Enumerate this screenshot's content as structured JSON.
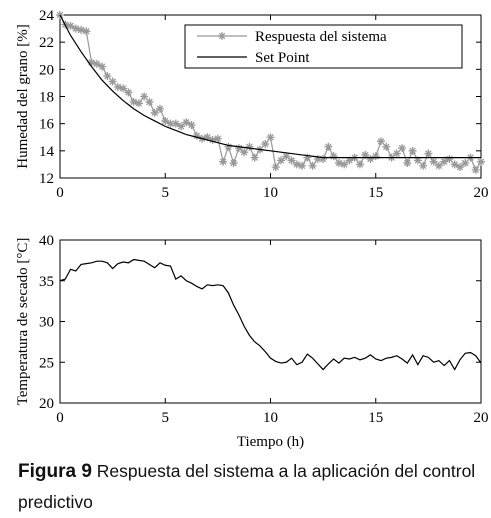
{
  "chart_data": [
    {
      "type": "line",
      "ylabel": "Humedad del grano [%]",
      "xlim": [
        0,
        20
      ],
      "xticks": [
        0,
        5,
        10,
        15,
        20
      ],
      "ylim": [
        12,
        24
      ],
      "yticks": [
        12,
        14,
        16,
        18,
        20,
        22,
        24
      ],
      "legend": "upper right",
      "series": [
        {
          "name": "Respuesta del sistema",
          "color": "#999999",
          "marker": "star",
          "x": [
            0,
            0.25,
            0.5,
            0.75,
            1,
            1.25,
            1.5,
            1.75,
            2,
            2.25,
            2.5,
            2.75,
            3,
            3.25,
            3.5,
            3.75,
            4,
            4.25,
            4.5,
            4.75,
            5,
            5.25,
            5.5,
            5.75,
            6,
            6.25,
            6.5,
            6.75,
            7,
            7.25,
            7.5,
            7.75,
            8,
            8.25,
            8.5,
            8.75,
            9,
            9.25,
            9.5,
            9.75,
            10,
            10.25,
            10.5,
            10.75,
            11,
            11.25,
            11.5,
            11.75,
            12,
            12.25,
            12.5,
            12.75,
            13,
            13.25,
            13.5,
            13.75,
            14,
            14.25,
            14.5,
            14.75,
            15,
            15.25,
            15.5,
            15.75,
            16,
            16.25,
            16.5,
            16.75,
            17,
            17.25,
            17.5,
            17.75,
            18,
            18.25,
            18.5,
            18.75,
            19,
            19.25,
            19.5,
            19.75,
            20
          ],
          "values": [
            24.0,
            23.3,
            23.2,
            23.0,
            22.9,
            22.8,
            20.5,
            20.4,
            20.2,
            19.5,
            19.1,
            18.7,
            18.6,
            18.3,
            17.6,
            17.5,
            18.0,
            17.6,
            16.8,
            17.1,
            16.2,
            16.0,
            16.0,
            15.8,
            16.1,
            15.9,
            15.1,
            14.9,
            15.0,
            14.8,
            14.9,
            13.2,
            14.3,
            13.1,
            14.2,
            13.9,
            14.3,
            13.5,
            14.1,
            14.5,
            15.0,
            12.8,
            13.3,
            13.6,
            13.3,
            13.0,
            12.9,
            13.5,
            12.9,
            13.4,
            13.4,
            14.3,
            13.6,
            13.1,
            13.0,
            13.3,
            13.5,
            13.0,
            13.7,
            13.4,
            13.6,
            14.7,
            14.3,
            13.5,
            13.8,
            14.2,
            13.1,
            14.0,
            13.3,
            12.9,
            13.8,
            13.2,
            12.9,
            13.2,
            13.4,
            13.0,
            12.8,
            13.1,
            13.5,
            12.6,
            13.2
          ]
        },
        {
          "name": "Set Point",
          "color": "#000000",
          "x": [
            0,
            0.5,
            1,
            1.5,
            2,
            2.5,
            3,
            3.5,
            4,
            4.5,
            5,
            5.5,
            6,
            6.5,
            7,
            7.5,
            8,
            8.5,
            9,
            9.5,
            10,
            10.5,
            11,
            11.5,
            12,
            12.5,
            13,
            13.5,
            14,
            14.5,
            15,
            15.5,
            16,
            16.5,
            17,
            17.5,
            18,
            18.5,
            19,
            19.5,
            20
          ],
          "values": [
            24.0,
            22.5,
            21.3,
            20.2,
            19.2,
            18.4,
            17.7,
            17.1,
            16.6,
            16.2,
            15.8,
            15.5,
            15.2,
            15.0,
            14.8,
            14.6,
            14.4,
            14.3,
            14.2,
            14.1,
            14.0,
            13.9,
            13.8,
            13.7,
            13.6,
            13.5,
            13.5,
            13.5,
            13.5,
            13.5,
            13.5,
            13.5,
            13.5,
            13.5,
            13.5,
            13.5,
            13.5,
            13.5,
            13.5,
            13.5,
            13.5
          ]
        }
      ]
    },
    {
      "type": "line",
      "ylabel": "Temperatura de secado [°C]",
      "xlabel": "Tiempo (h)",
      "xlim": [
        0,
        20
      ],
      "xticks": [
        0,
        5,
        10,
        15,
        20
      ],
      "ylim": [
        20,
        40
      ],
      "yticks": [
        20,
        25,
        30,
        35,
        40
      ],
      "series": [
        {
          "color": "#000000",
          "x": [
            0,
            0.25,
            0.5,
            0.75,
            1,
            1.25,
            1.5,
            1.75,
            2,
            2.25,
            2.5,
            2.75,
            3,
            3.25,
            3.5,
            3.75,
            4,
            4.25,
            4.5,
            4.75,
            5,
            5.25,
            5.5,
            5.75,
            6,
            6.25,
            6.5,
            6.75,
            7,
            7.25,
            7.5,
            7.75,
            8,
            8.25,
            8.5,
            8.75,
            9,
            9.25,
            9.5,
            9.75,
            10,
            10.25,
            10.5,
            10.75,
            11,
            11.25,
            11.5,
            11.75,
            12,
            12.25,
            12.5,
            12.75,
            13,
            13.25,
            13.5,
            13.75,
            14,
            14.25,
            14.5,
            14.75,
            15,
            15.25,
            15.5,
            15.75,
            16,
            16.25,
            16.5,
            16.75,
            17,
            17.25,
            17.5,
            17.75,
            18,
            18.25,
            18.5,
            18.75,
            19,
            19.25,
            19.5,
            19.75,
            20
          ],
          "values": [
            35.0,
            35.2,
            36.4,
            36.2,
            37.0,
            37.1,
            37.2,
            37.4,
            37.4,
            37.2,
            36.5,
            37.1,
            37.3,
            37.2,
            37.6,
            37.5,
            37.4,
            37.0,
            36.6,
            37.2,
            36.9,
            36.8,
            35.2,
            35.6,
            35.0,
            34.7,
            34.3,
            34.0,
            34.5,
            34.4,
            34.5,
            34.4,
            33.5,
            32.0,
            30.8,
            29.4,
            28.3,
            27.5,
            27.0,
            26.3,
            25.5,
            25.1,
            24.9,
            25.0,
            25.5,
            24.7,
            25.0,
            26.0,
            25.5,
            24.8,
            24.1,
            24.8,
            25.4,
            24.9,
            25.5,
            25.4,
            25.6,
            25.3,
            25.5,
            25.9,
            25.4,
            25.2,
            25.5,
            25.6,
            25.8,
            25.4,
            24.9,
            25.9,
            24.7,
            25.8,
            25.6,
            25.0,
            25.2,
            24.6,
            25.2,
            24.1,
            25.3,
            26.1,
            26.2,
            25.8,
            24.9
          ]
        }
      ]
    }
  ],
  "caption": {
    "label": "Figura 9",
    "text": "Respuesta del sistema a la aplicación del control predictivo"
  }
}
